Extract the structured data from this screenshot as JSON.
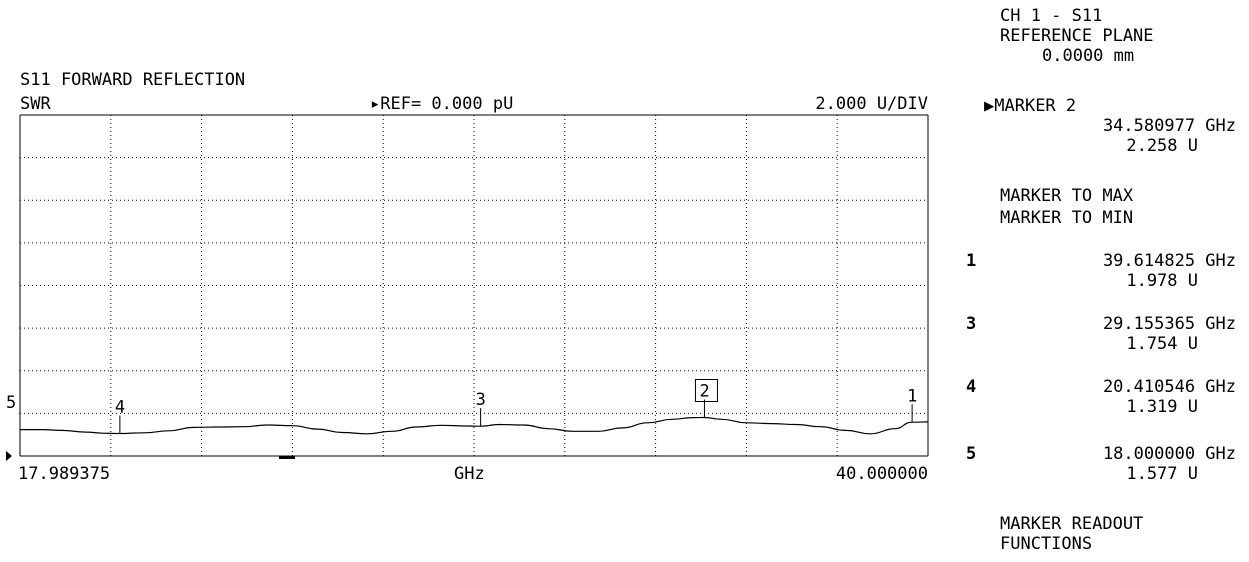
{
  "header": {
    "title": "S11 FORWARD REFLECTION",
    "format": "SWR",
    "reference": "REF= 0.000 pU",
    "scale": "2.000 U/DIV"
  },
  "sidebar": {
    "channel": "CH 1 - S11",
    "ref_plane_label": "REFERENCE PLANE",
    "ref_plane_value": "0.0000 mm",
    "active_marker_label": "MARKER 2",
    "active_marker_freq": "34.580977 GHz",
    "active_marker_value": "2.258 U",
    "marker_to_max": "MARKER TO MAX",
    "marker_to_min": "MARKER TO MIN",
    "markers": [
      {
        "num": "1",
        "freq": "39.614825 GHz",
        "value": "1.978 U"
      },
      {
        "num": "3",
        "freq": "29.155365 GHz",
        "value": "1.754 U"
      },
      {
        "num": "4",
        "freq": "20.410546 GHz",
        "value": "1.319 U"
      },
      {
        "num": "5",
        "freq": "18.000000 GHz",
        "value": "1.577 U"
      }
    ],
    "readout_1": "MARKER READOUT",
    "readout_2": "FUNCTIONS"
  },
  "chart_data": {
    "type": "line",
    "title": "S11 FORWARD REFLECTION",
    "ylabel": "SWR",
    "xlabel": "GHz",
    "x_start_label": "17.989375",
    "x_stop_label": "40.000000",
    "xlim": [
      17.989375,
      40.0
    ],
    "ylim": [
      0,
      20
    ],
    "grid": true,
    "reference_value": 0.0,
    "scale_per_div": 2.0,
    "series": [
      {
        "x": [
          17.99,
          18.5,
          19.0,
          19.6,
          20.0,
          20.41,
          21.0,
          21.6,
          22.2,
          22.8,
          23.4,
          24.0,
          24.6,
          25.2,
          25.8,
          26.4,
          27.0,
          27.6,
          28.2,
          28.8,
          29.16,
          29.6,
          30.2,
          30.8,
          31.4,
          32.0,
          32.6,
          33.2,
          33.8,
          34.3,
          34.58,
          35.0,
          35.6,
          36.2,
          36.8,
          37.4,
          38.0,
          38.6,
          39.2,
          39.61,
          40.0
        ],
        "y": [
          1.55,
          1.55,
          1.5,
          1.4,
          1.34,
          1.32,
          1.36,
          1.48,
          1.68,
          1.7,
          1.72,
          1.82,
          1.78,
          1.58,
          1.38,
          1.3,
          1.45,
          1.7,
          1.8,
          1.76,
          1.75,
          1.85,
          1.82,
          1.6,
          1.45,
          1.45,
          1.65,
          1.95,
          2.15,
          2.25,
          2.26,
          2.15,
          1.95,
          1.9,
          1.85,
          1.72,
          1.5,
          1.3,
          1.6,
          1.98,
          2.0
        ]
      }
    ],
    "markers": [
      {
        "label": "1",
        "x": 39.614825,
        "y": 1.978
      },
      {
        "label": "2",
        "x": 34.580977,
        "y": 2.258,
        "active": true
      },
      {
        "label": "3",
        "x": 29.155365,
        "y": 1.754
      },
      {
        "label": "4",
        "x": 20.410546,
        "y": 1.319
      },
      {
        "label": "5",
        "x": 18.0,
        "y": 1.577
      }
    ]
  }
}
